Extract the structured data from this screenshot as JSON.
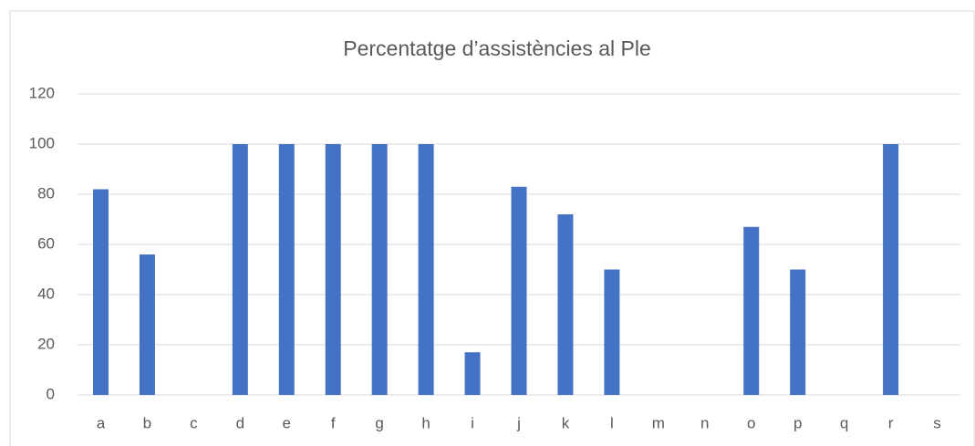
{
  "chart_data": {
    "type": "bar",
    "title": "Percentatge d’assistències al Ple",
    "categories": [
      "a",
      "b",
      "c",
      "d",
      "e",
      "f",
      "g",
      "h",
      "i",
      "j",
      "k",
      "l",
      "m",
      "n",
      "o",
      "p",
      "q",
      "r",
      "s"
    ],
    "values": [
      82,
      56,
      0,
      100,
      100,
      100,
      100,
      100,
      17,
      83,
      72,
      50,
      0,
      0,
      67,
      50,
      0,
      100,
      0
    ],
    "color": "#4472c4",
    "ylim": [
      0,
      120
    ],
    "yticks": [
      0,
      20,
      40,
      60,
      80,
      100,
      120
    ],
    "grid": true
  }
}
